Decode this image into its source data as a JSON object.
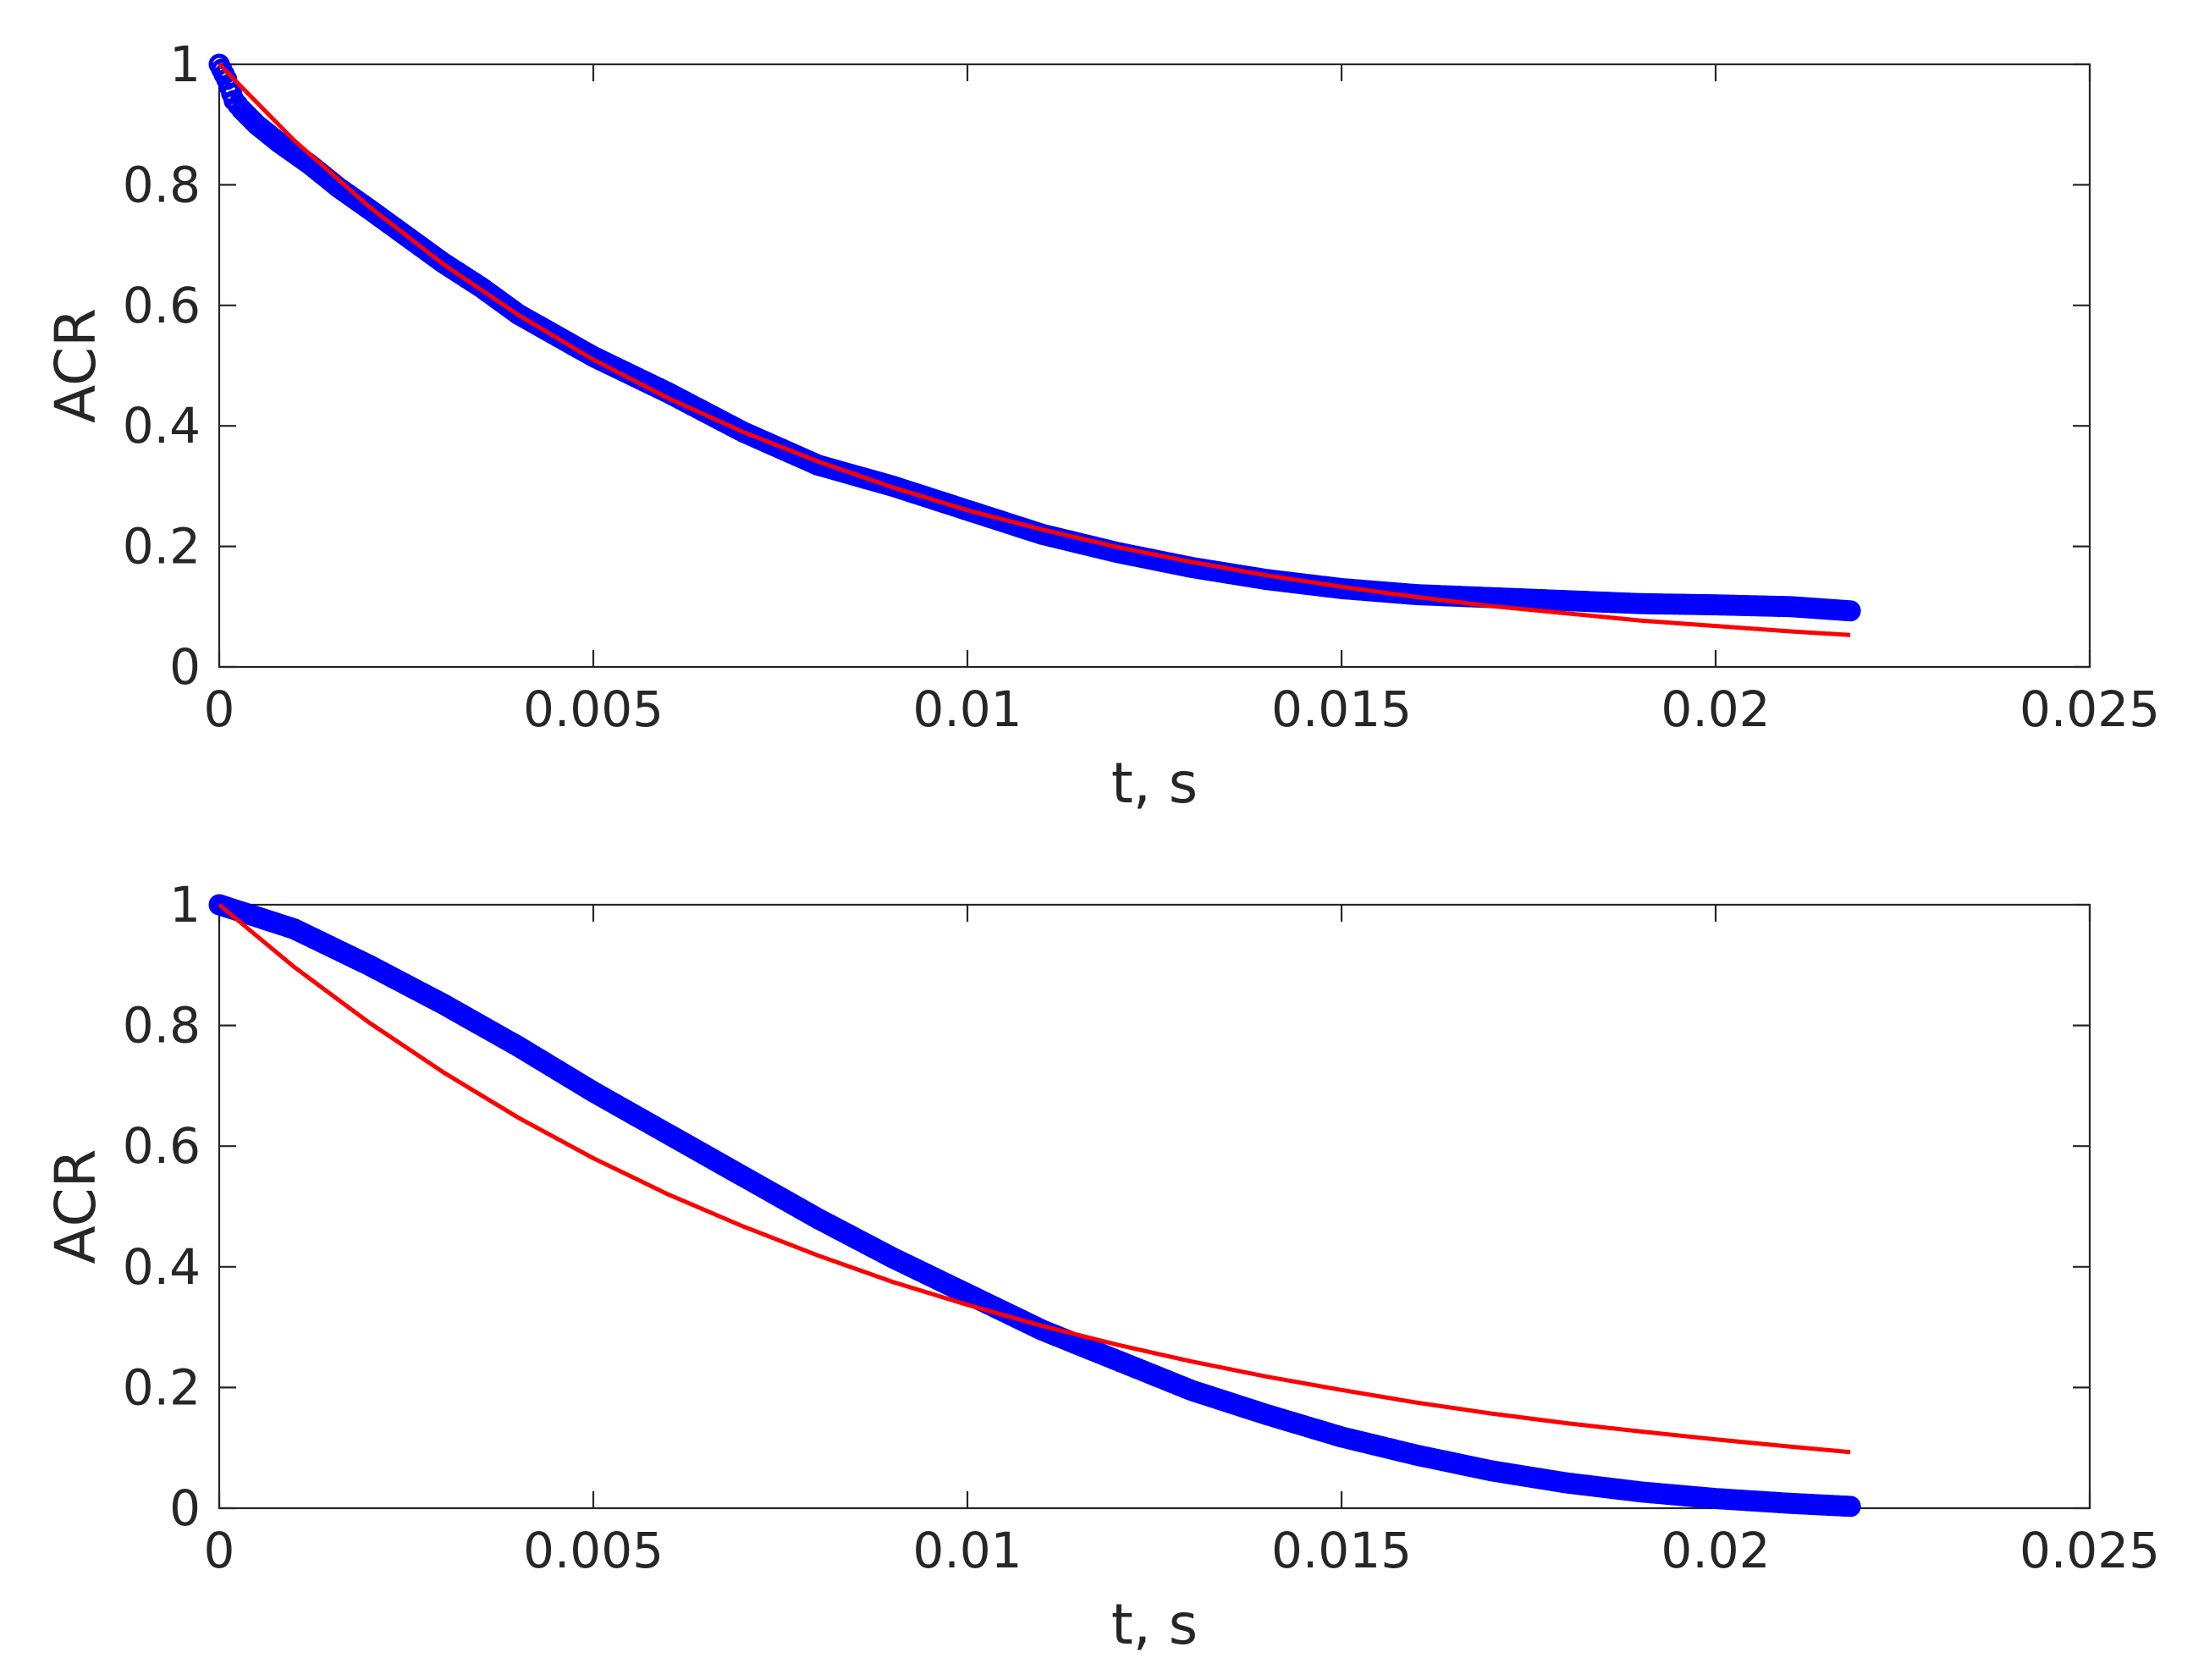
{
  "chart_data": [
    {
      "type": "scatter",
      "xlabel": "t, s",
      "ylabel": "ACR",
      "xlim": [
        0,
        0.025
      ],
      "ylim": [
        0,
        1
      ],
      "grid": false,
      "x_ticks": [
        "0",
        "0.005",
        "0.01",
        "0.015",
        "0.02",
        "0.025"
      ],
      "y_ticks": [
        "0",
        "0.2",
        "0.4",
        "0.6",
        "0.8",
        "1"
      ],
      "series": [
        {
          "kind": "markers",
          "marker": "open-circle",
          "color": "#0000ff",
          "x": [
            0,
            0.0001,
            0.0002,
            0.0003,
            0.0005,
            0.0008,
            0.0012,
            0.0016,
            0.002,
            0.0025,
            0.003,
            0.0035,
            0.004,
            0.005,
            0.006,
            0.007,
            0.008,
            0.009,
            0.01,
            0.011,
            0.012,
            0.013,
            0.014,
            0.015,
            0.016,
            0.017,
            0.018,
            0.019,
            0.02,
            0.021,
            0.0218
          ],
          "y": [
            1.0,
            0.975,
            0.94,
            0.925,
            0.9,
            0.87,
            0.835,
            0.795,
            0.76,
            0.715,
            0.67,
            0.63,
            0.585,
            0.515,
            0.455,
            0.39,
            0.335,
            0.3,
            0.26,
            0.22,
            0.19,
            0.165,
            0.145,
            0.13,
            0.12,
            0.115,
            0.11,
            0.105,
            0.103,
            0.1,
            0.093
          ]
        },
        {
          "kind": "line",
          "color": "#ff0000",
          "x": [
            0,
            0.001,
            0.002,
            0.003,
            0.004,
            0.005,
            0.006,
            0.007,
            0.008,
            0.009,
            0.01,
            0.011,
            0.012,
            0.013,
            0.014,
            0.015,
            0.016,
            0.017,
            0.018,
            0.019,
            0.02,
            0.021,
            0.0218
          ],
          "y": [
            1.0,
            0.874,
            0.764,
            0.668,
            0.584,
            0.51,
            0.446,
            0.39,
            0.341,
            0.298,
            0.26,
            0.228,
            0.199,
            0.174,
            0.152,
            0.133,
            0.116,
            0.101,
            0.089,
            0.077,
            0.068,
            0.059,
            0.053
          ]
        }
      ]
    },
    {
      "type": "scatter",
      "xlabel": "t, s",
      "ylabel": "ACR",
      "xlim": [
        0,
        0.025
      ],
      "ylim": [
        0,
        1
      ],
      "grid": false,
      "x_ticks": [
        "0",
        "0.005",
        "0.01",
        "0.015",
        "0.02",
        "0.025"
      ],
      "y_ticks": [
        "0",
        "0.2",
        "0.4",
        "0.6",
        "0.8",
        "1"
      ],
      "series": [
        {
          "kind": "markers",
          "marker": "open-circle",
          "color": "#0000ff",
          "x": [
            0,
            0.001,
            0.002,
            0.003,
            0.004,
            0.005,
            0.006,
            0.007,
            0.008,
            0.009,
            0.01,
            0.011,
            0.012,
            0.013,
            0.014,
            0.015,
            0.016,
            0.017,
            0.018,
            0.019,
            0.02,
            0.021,
            0.0218
          ],
          "y": [
            1.0,
            0.96,
            0.9,
            0.835,
            0.765,
            0.69,
            0.62,
            0.55,
            0.48,
            0.415,
            0.355,
            0.295,
            0.245,
            0.195,
            0.155,
            0.118,
            0.088,
            0.062,
            0.042,
            0.027,
            0.016,
            0.008,
            0.003
          ]
        },
        {
          "kind": "line",
          "color": "#ff0000",
          "x": [
            0,
            0.001,
            0.002,
            0.003,
            0.004,
            0.005,
            0.006,
            0.007,
            0.008,
            0.009,
            0.01,
            0.011,
            0.012,
            0.013,
            0.014,
            0.015,
            0.016,
            0.017,
            0.018,
            0.019,
            0.02,
            0.021,
            0.0218
          ],
          "y": [
            1.0,
            0.897,
            0.805,
            0.722,
            0.647,
            0.58,
            0.52,
            0.467,
            0.419,
            0.375,
            0.337,
            0.302,
            0.271,
            0.243,
            0.218,
            0.196,
            0.175,
            0.157,
            0.141,
            0.127,
            0.114,
            0.102,
            0.093
          ]
        }
      ]
    }
  ]
}
